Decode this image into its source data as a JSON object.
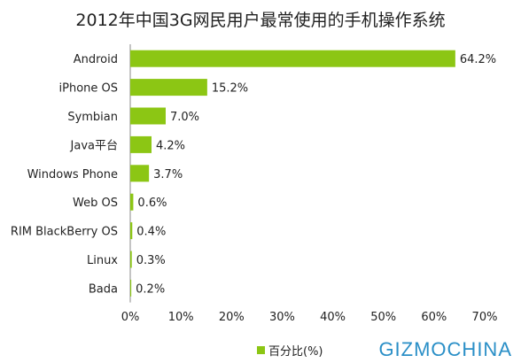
{
  "chart_data": {
    "type": "bar",
    "orientation": "horizontal",
    "title": "2012年中国3G网民用户最常使用的手机操作系统",
    "categories": [
      "Android",
      "iPhone OS",
      "Symbian",
      "Java平台",
      "Windows Phone",
      "Web OS",
      "RIM BlackBerry OS",
      "Linux",
      "Bada"
    ],
    "series": [
      {
        "name": "百分比(%)",
        "values": [
          64.2,
          15.2,
          7.0,
          4.2,
          3.7,
          0.6,
          0.4,
          0.3,
          0.2
        ]
      }
    ],
    "data_labels": [
      "64.2%",
      "15.2%",
      "7.0%",
      "4.2%",
      "3.7%",
      "0.6%",
      "0.4%",
      "0.3%",
      "0.2%"
    ],
    "xlim": [
      0,
      70
    ],
    "xticks": [
      "0%",
      "10%",
      "20%",
      "30%",
      "40%",
      "50%",
      "60%",
      "70%"
    ],
    "grid": false,
    "legend_position": "bottom",
    "bar_color": "#8cc614"
  },
  "watermark": "GIZMOCHINA"
}
